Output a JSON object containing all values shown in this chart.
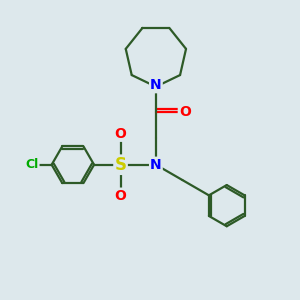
{
  "bg_color": "#dde8ec",
  "line_color": "#2d5a27",
  "N_color": "#0000ff",
  "O_color": "#ff0000",
  "S_color": "#cccc00",
  "Cl_color": "#00aa00",
  "line_width": 1.6,
  "font_size_atom": 10,
  "fig_size": [
    3.0,
    3.0
  ],
  "dpi": 100,
  "xlim": [
    0,
    10
  ],
  "ylim": [
    0,
    10
  ]
}
